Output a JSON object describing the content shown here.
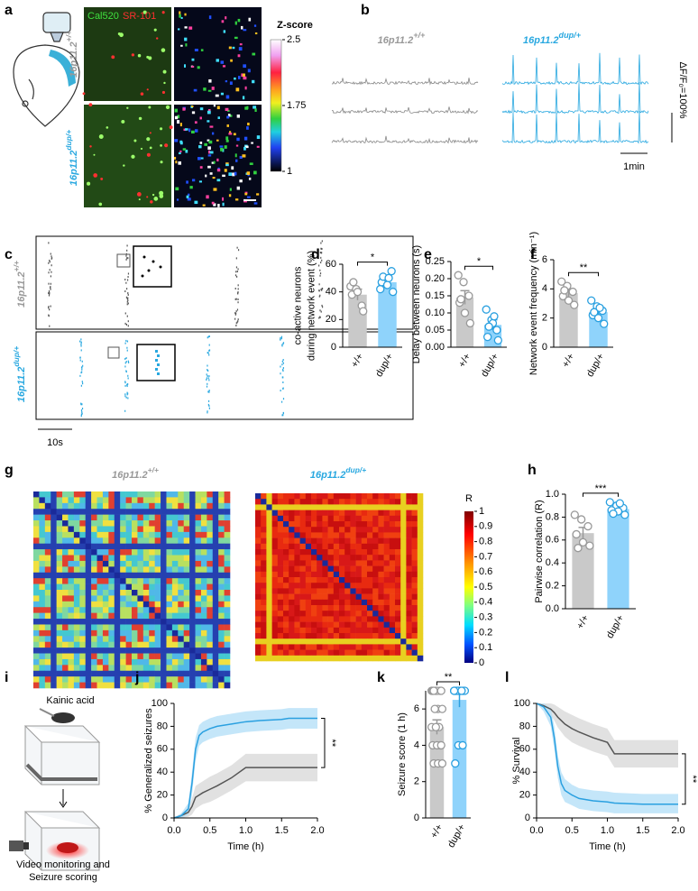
{
  "figure": {
    "panel_letters": [
      "a",
      "b",
      "c",
      "d",
      "e",
      "f",
      "g",
      "h",
      "i",
      "j",
      "k",
      "l"
    ],
    "genotype": {
      "base": "16p11.2",
      "wt": "+/+",
      "dup": "dup/+"
    },
    "a": {
      "stain_green": "Cal520",
      "stain_red": "SR-101",
      "colorbar_title": "Z-score",
      "colorbar_ticks": [
        2.5,
        1.75,
        1
      ]
    },
    "b": {
      "scale_y": "ΔF/F₀=100%",
      "scale_x": "1min"
    },
    "c": {
      "scale_x": "10s"
    },
    "g": {
      "colorbar_title": "R",
      "colorbar_ticks": [
        0,
        0.1,
        0.2,
        0.3,
        0.4,
        0.5,
        0.6,
        0.7,
        0.8,
        0.9,
        1
      ]
    },
    "i": {
      "drug": "Kainic acid",
      "caption": [
        "Video monitoring and",
        "Seizure scoring"
      ]
    }
  },
  "chart_data": [
    {
      "type": "bar",
      "ylabel": [
        "co-active neurons",
        "during network event (%)"
      ],
      "categories": [
        "+/+",
        "dup/+"
      ],
      "values": [
        38,
        47
      ],
      "errors": [
        4,
        3
      ],
      "colors": [
        "#c9c9c9",
        "#8fd3fb"
      ],
      "point_colors": [
        "#999999",
        "#2aa0e0"
      ],
      "points": [
        [
          44,
          42,
          30,
          38,
          40,
          26,
          47
        ],
        [
          42,
          48,
          55,
          47,
          45,
          40,
          51,
          50
        ]
      ],
      "ylim": [
        0,
        60
      ],
      "yticks": [
        0,
        20,
        40,
        60
      ],
      "significance": "*"
    },
    {
      "type": "bar",
      "ylabel": "Delay between neurons (s)",
      "categories": [
        "+/+",
        "dup/+"
      ],
      "values": [
        0.145,
        0.065
      ],
      "errors": [
        0.02,
        0.015
      ],
      "colors": [
        "#c9c9c9",
        "#8fd3fb"
      ],
      "point_colors": [
        "#999999",
        "#2aa0e0"
      ],
      "points": [
        [
          0.21,
          0.19,
          0.15,
          0.13,
          0.1,
          0.07,
          0.14
        ],
        [
          0.11,
          0.08,
          0.05,
          0.03,
          0.07,
          0.02,
          0.06,
          0.09
        ]
      ],
      "ylim": [
        0,
        0.25
      ],
      "yticks": [
        {
          "value": 0,
          "label": "0.00"
        },
        {
          "value": 0.05,
          "label": "0.05"
        },
        {
          "value": 0.1,
          "label": "0.10"
        },
        {
          "value": 0.15,
          "label": "0.15"
        },
        {
          "value": 0.2,
          "label": "0.20"
        },
        {
          "value": 0.25,
          "label": "0.25"
        }
      ],
      "significance": "*"
    },
    {
      "type": "bar",
      "ylabel": "Network event frequency (min⁻¹)",
      "categories": [
        "+/+",
        "dup/+"
      ],
      "values": [
        3.7,
        2.4
      ],
      "errors": [
        0.3,
        0.3
      ],
      "colors": [
        "#c9c9c9",
        "#8fd3fb"
      ],
      "point_colors": [
        "#999999",
        "#2aa0e0"
      ],
      "points": [
        [
          4.5,
          4.2,
          3.8,
          3.5,
          3.2,
          2.9,
          3.9
        ],
        [
          3.2,
          2.8,
          2.5,
          2.2,
          2.0,
          1.6,
          2.4,
          2.7
        ]
      ],
      "ylim": [
        0,
        6
      ],
      "yticks": [
        0,
        2,
        4,
        6
      ],
      "significance": "**"
    },
    {
      "type": "bar",
      "ylabel": "Pairwise correlation (R)",
      "categories": [
        "+/+",
        "dup/+"
      ],
      "values": [
        0.66,
        0.87
      ],
      "errors": [
        0.05,
        0.02
      ],
      "colors": [
        "#c9c9c9",
        "#8fd3fb"
      ],
      "point_colors": [
        "#999999",
        "#2aa0e0"
      ],
      "points": [
        [
          0.82,
          0.78,
          0.72,
          0.65,
          0.58,
          0.55,
          0.53
        ],
        [
          0.93,
          0.9,
          0.88,
          0.86,
          0.85,
          0.82,
          0.83,
          0.92
        ]
      ],
      "ylim": [
        0,
        1
      ],
      "yticks": [
        {
          "value": 0,
          "label": "0.0"
        },
        {
          "value": 0.2,
          "label": "0.2"
        },
        {
          "value": 0.4,
          "label": "0.4"
        },
        {
          "value": 0.6,
          "label": "0.6"
        },
        {
          "value": 0.8,
          "label": "0.8"
        },
        {
          "value": 1,
          "label": "1.0"
        }
      ],
      "significance": "***"
    },
    {
      "type": "line",
      "ylabel": "% Generalized seizures",
      "xlabel": "Time (h)",
      "x": [
        0,
        0.1,
        0.2,
        0.25,
        0.3,
        0.35,
        0.4,
        0.5,
        0.6,
        0.8,
        1.0,
        1.2,
        1.5,
        1.6,
        2.0
      ],
      "series": [
        {
          "color": "#555555",
          "band_color": "#d9d9d9",
          "values": [
            0,
            2,
            5,
            10,
            18,
            20,
            22,
            25,
            28,
            35,
            44,
            44,
            44,
            44,
            44
          ],
          "lower": [
            0,
            0,
            1,
            3,
            8,
            10,
            12,
            14,
            17,
            24,
            32,
            32,
            32,
            32,
            32
          ],
          "upper": [
            0,
            4,
            9,
            17,
            28,
            30,
            32,
            36,
            39,
            46,
            56,
            56,
            56,
            56,
            56
          ]
        },
        {
          "color": "#2aa0e0",
          "band_color": "#b5e0f8",
          "values": [
            0,
            2,
            8,
            30,
            60,
            72,
            75,
            78,
            80,
            82,
            84,
            85,
            86,
            87,
            87
          ],
          "lower": [
            0,
            0,
            3,
            20,
            50,
            63,
            66,
            69,
            71,
            73,
            75,
            76,
            77,
            78,
            78
          ],
          "upper": [
            0,
            4,
            13,
            40,
            70,
            81,
            84,
            87,
            89,
            91,
            93,
            94,
            95,
            96,
            96
          ]
        }
      ],
      "xlim": [
        0,
        2
      ],
      "xticks": [
        {
          "value": 0,
          "label": "0.0"
        },
        {
          "value": 0.5,
          "label": "0.5"
        },
        {
          "value": 1,
          "label": "1.0"
        },
        {
          "value": 1.5,
          "label": "1.5"
        },
        {
          "value": 2,
          "label": "2.0"
        }
      ],
      "ylim": [
        0,
        100
      ],
      "yticks": [
        0,
        20,
        40,
        60,
        80,
        100
      ],
      "significance": "**"
    },
    {
      "type": "bar",
      "ylabel": "Seizure score (1 h)",
      "categories": [
        "+/+",
        "dup/+"
      ],
      "values": [
        5.0,
        6.5
      ],
      "errors": [
        0.4,
        0.4
      ],
      "colors": [
        "#c9c9c9",
        "#8fd3fb"
      ],
      "point_colors": [
        "#999999",
        "#2aa0e0"
      ],
      "points": [
        [
          7,
          7,
          7,
          7,
          7,
          7,
          7,
          6,
          6,
          6,
          5,
          5,
          5,
          4,
          4,
          4,
          4,
          3,
          3,
          3
        ],
        [
          7,
          7,
          7,
          7,
          7,
          7,
          7,
          7,
          7,
          7,
          7,
          7,
          4,
          4,
          3
        ]
      ],
      "ylim": [
        0,
        7
      ],
      "yticks": [
        0,
        2,
        4,
        6
      ],
      "significance": "**"
    },
    {
      "type": "line",
      "ylabel": "% Survival",
      "xlabel": "Time (h)",
      "x": [
        0,
        0.1,
        0.2,
        0.25,
        0.3,
        0.35,
        0.4,
        0.5,
        0.6,
        0.8,
        1.0,
        1.1,
        1.5,
        1.6,
        2.0
      ],
      "series": [
        {
          "color": "#555555",
          "band_color": "#d9d9d9",
          "values": [
            100,
            98,
            95,
            92,
            88,
            85,
            82,
            78,
            75,
            70,
            66,
            56,
            56,
            56,
            56
          ],
          "lower": [
            100,
            96,
            90,
            85,
            79,
            75,
            71,
            66,
            63,
            58,
            54,
            44,
            44,
            44,
            44
          ],
          "upper": [
            100,
            100,
            100,
            99,
            97,
            95,
            93,
            90,
            87,
            82,
            78,
            68,
            68,
            68,
            68
          ]
        },
        {
          "color": "#2aa0e0",
          "band_color": "#b5e0f8",
          "values": [
            100,
            97,
            88,
            70,
            45,
            30,
            24,
            20,
            17,
            15,
            14,
            13,
            12,
            12,
            12
          ],
          "lower": [
            100,
            93,
            80,
            60,
            35,
            20,
            14,
            11,
            8,
            6,
            5,
            4,
            4,
            4,
            4
          ],
          "upper": [
            100,
            100,
            96,
            80,
            55,
            40,
            34,
            29,
            26,
            24,
            23,
            22,
            21,
            21,
            21
          ]
        }
      ],
      "xlim": [
        0,
        2
      ],
      "xticks": [
        {
          "value": 0,
          "label": "0.0"
        },
        {
          "value": 0.5,
          "label": "0.5"
        },
        {
          "value": 1,
          "label": "1.0"
        },
        {
          "value": 1.5,
          "label": "1.5"
        },
        {
          "value": 2,
          "label": "2.0"
        }
      ],
      "ylim": [
        0,
        100
      ],
      "yticks": [
        0,
        20,
        40,
        60,
        80,
        100
      ],
      "significance": "**"
    }
  ]
}
